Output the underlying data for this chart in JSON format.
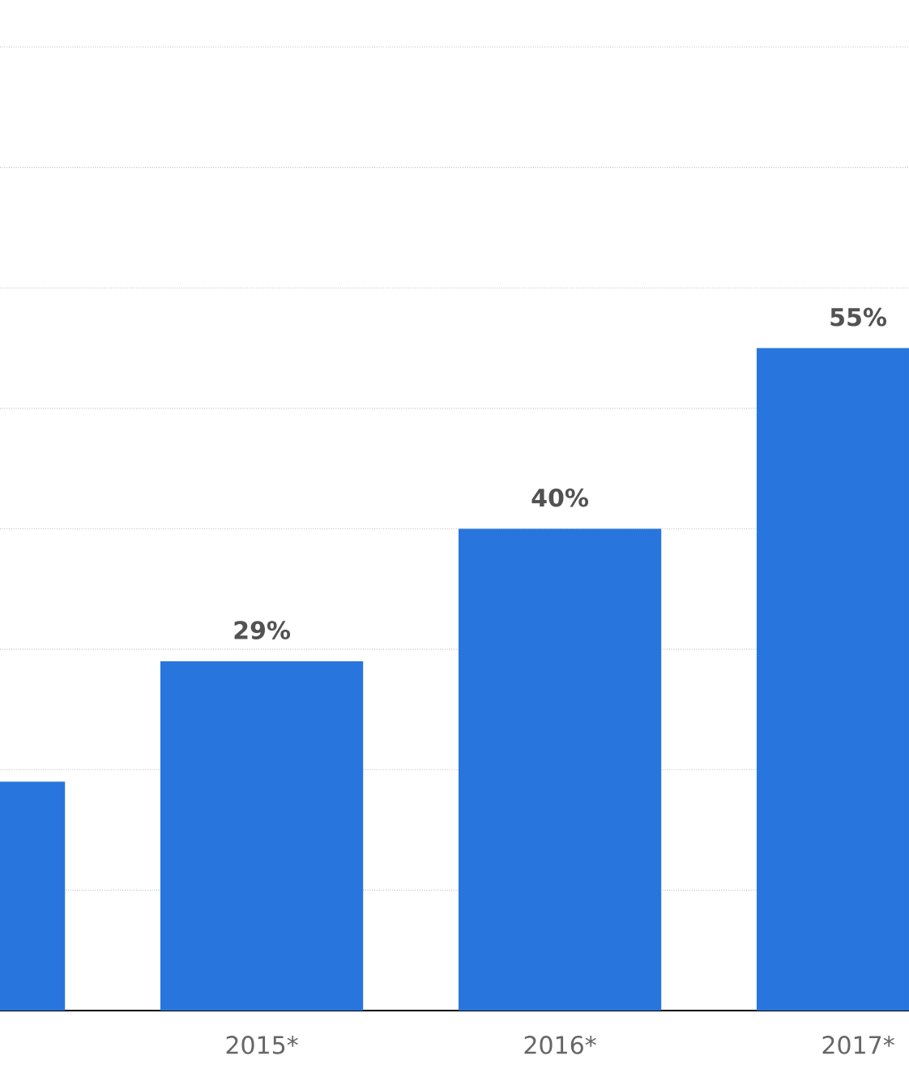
{
  "chart_data": {
    "type": "bar",
    "categories": [
      null,
      "2015*",
      "2016*",
      "2017*"
    ],
    "values": [
      19,
      29,
      40,
      55
    ],
    "value_labels": [
      null,
      "29%",
      "40%",
      "55%"
    ],
    "color": "#2876dd",
    "yticks": [
      {
        "value": 0,
        "label": null
      },
      {
        "value": 10,
        "label": null
      },
      {
        "value": 20,
        "label": null
      },
      {
        "value": 30,
        "label": null
      },
      {
        "value": 40,
        "label": null
      },
      {
        "value": 50,
        "label": null
      },
      {
        "value": 60,
        "label": null
      },
      {
        "value": 70,
        "label": null
      },
      {
        "value": 80,
        "label": null
      }
    ],
    "grid": "y",
    "tick_labels": "x"
  }
}
